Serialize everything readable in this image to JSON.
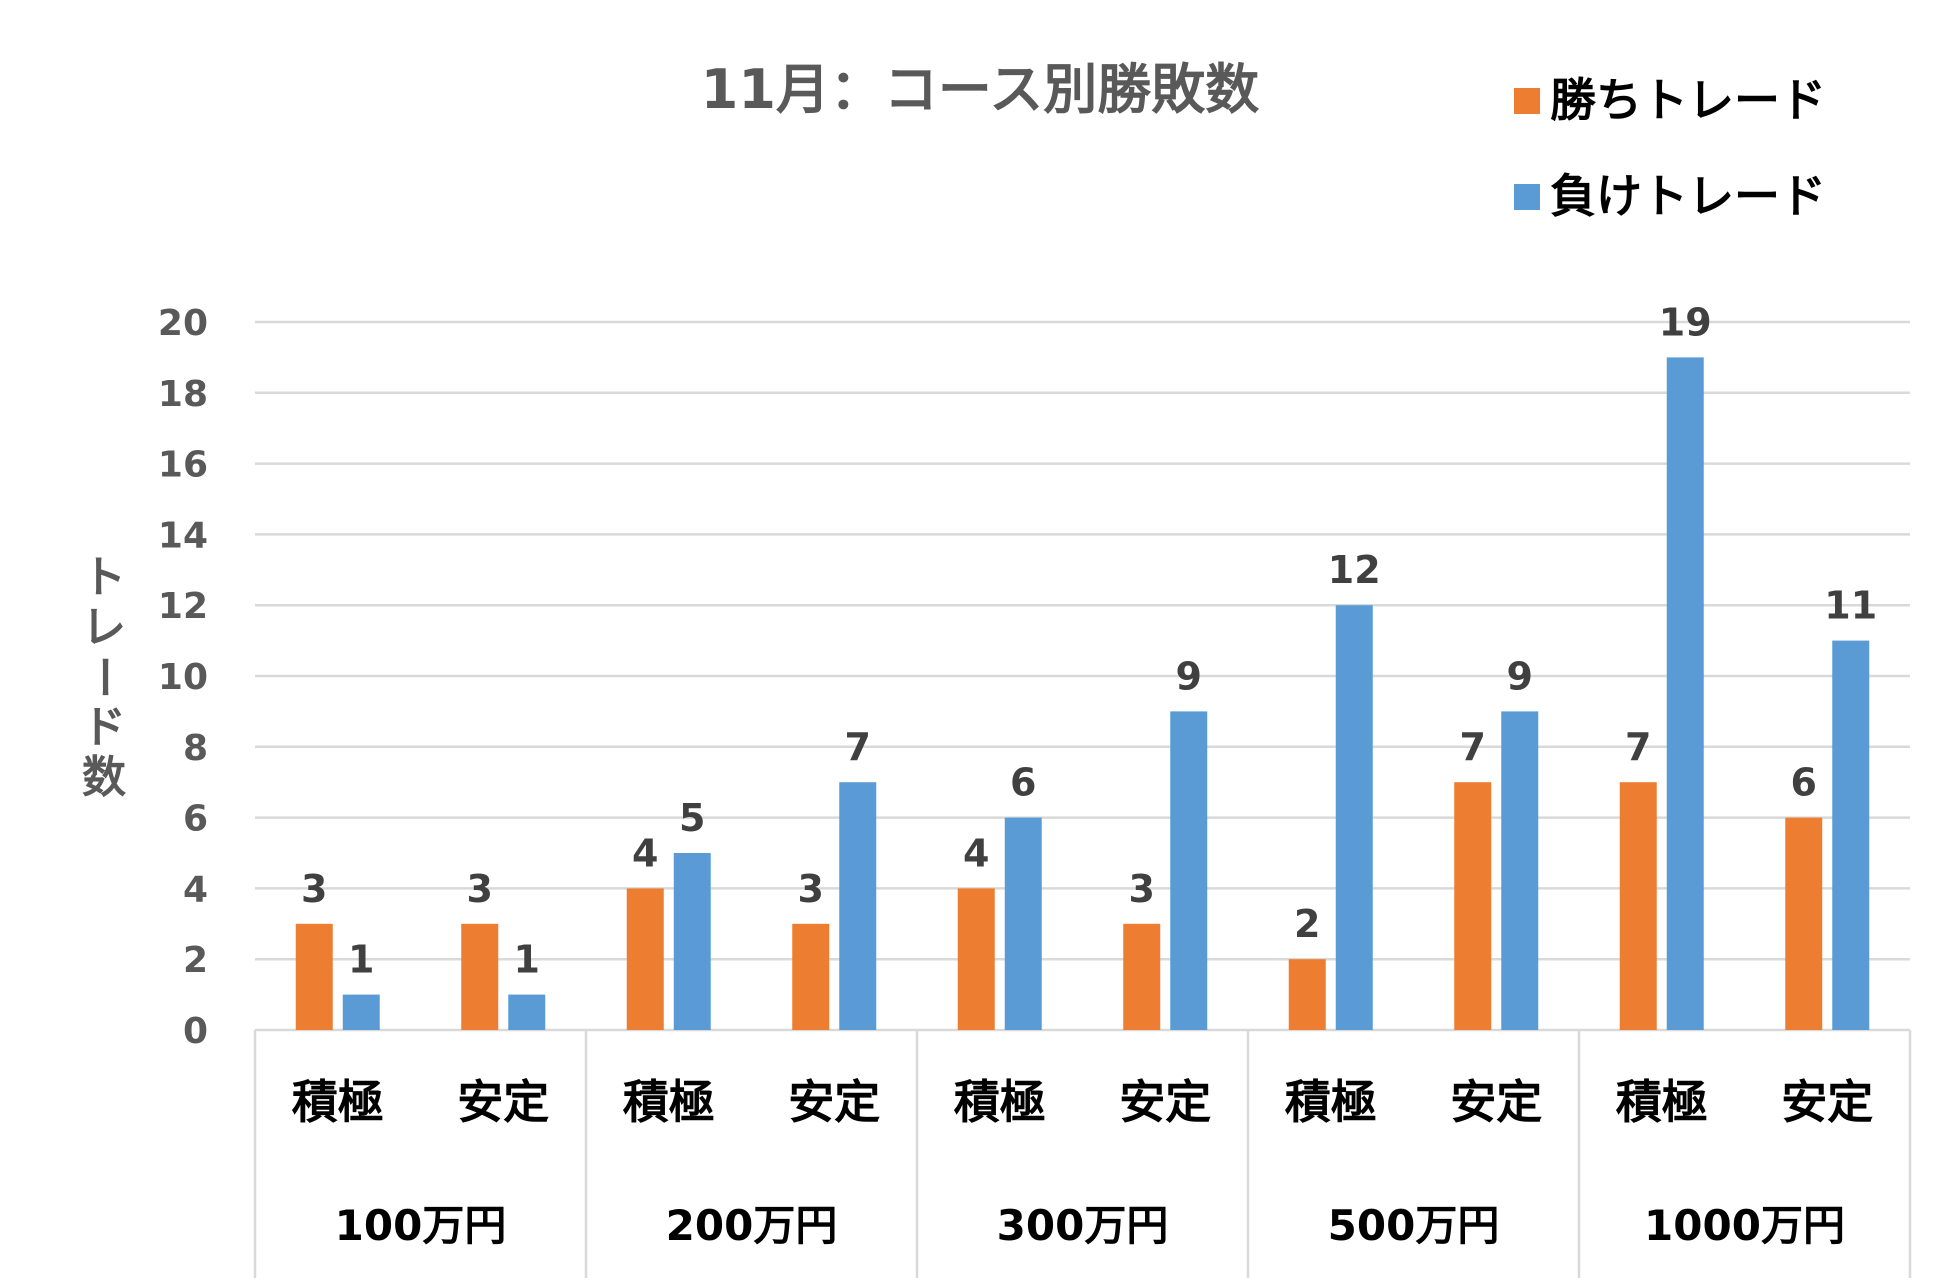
{
  "chart_data": {
    "type": "bar",
    "title": "11月：コース別勝敗数",
    "ylabel": "トレード数",
    "ylim": [
      0,
      20
    ],
    "yticks": [
      0,
      2,
      4,
      6,
      8,
      10,
      12,
      14,
      16,
      18,
      20
    ],
    "grid": true,
    "legend_position": "top-right",
    "groups": [
      "100万円",
      "200万円",
      "300万円",
      "500万円",
      "1000万円"
    ],
    "subcategories": [
      "積極",
      "安定"
    ],
    "categories": [
      "積極",
      "安定",
      "積極",
      "安定",
      "積極",
      "安定",
      "積極",
      "安定",
      "積極",
      "安定"
    ],
    "series": [
      {
        "name": "勝ちトレード",
        "color": "#ED7D31",
        "values": [
          3,
          3,
          4,
          3,
          4,
          3,
          2,
          7,
          7,
          6
        ]
      },
      {
        "name": "負けトレード",
        "color": "#5B9BD5",
        "values": [
          1,
          1,
          5,
          7,
          6,
          9,
          12,
          9,
          19,
          11
        ]
      }
    ]
  }
}
